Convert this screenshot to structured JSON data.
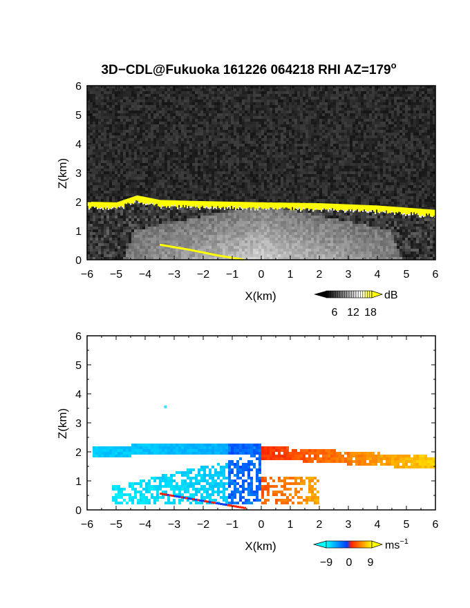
{
  "title": {
    "main": "3D−CDL@Fukuoka 161226 064218 RHI AZ=179",
    "superscript": "o"
  },
  "chart_data": [
    {
      "type": "heatmap",
      "panel": "reflectivity",
      "xlabel": "X(km)",
      "ylabel": "Z(km)",
      "xlim": [
        -6,
        6
      ],
      "ylim": [
        0,
        6
      ],
      "xticks": [
        -6,
        -5,
        -4,
        -3,
        -2,
        -1,
        0,
        1,
        2,
        3,
        4,
        5,
        6
      ],
      "yticks": [
        0,
        1,
        2,
        3,
        4,
        5,
        6
      ],
      "colorbar": {
        "unit": "dB",
        "ticks": [
          6,
          12,
          18
        ],
        "range": [
          0,
          20
        ],
        "colors": [
          "#000000",
          "#ffffff",
          "#ffff00"
        ]
      },
      "features": {
        "cloud_layer_z_km": [
          {
            "x": -6,
            "z": 2.0
          },
          {
            "x": -5,
            "z": 1.98
          },
          {
            "x": -4.3,
            "z": 2.22
          },
          {
            "x": -3.5,
            "z": 2.06
          },
          {
            "x": -2,
            "z": 2.02
          },
          {
            "x": 0,
            "z": 1.98
          },
          {
            "x": 2,
            "z": 1.95
          },
          {
            "x": 4,
            "z": 1.87
          },
          {
            "x": 6,
            "z": 1.72
          }
        ],
        "ground_clutter_line": [
          {
            "x": -3.5,
            "z": 0.52
          },
          {
            "x": -2.5,
            "z": 0.35
          },
          {
            "x": -1.5,
            "z": 0.15
          },
          {
            "x": -0.6,
            "z": 0.0
          }
        ]
      }
    },
    {
      "type": "heatmap",
      "panel": "doppler_velocity",
      "xlabel": "X(km)",
      "ylabel": "Z(km)",
      "xlim": [
        -6,
        6
      ],
      "ylim": [
        0,
        6
      ],
      "xticks": [
        -6,
        -5,
        -4,
        -3,
        -2,
        -1,
        0,
        1,
        2,
        3,
        4,
        5,
        6
      ],
      "yticks": [
        0,
        1,
        2,
        3,
        4,
        5,
        6
      ],
      "colorbar": {
        "unit": "ms",
        "unit_exponent": "−1",
        "ticks": [
          -9,
          0,
          9
        ],
        "tick_labels": [
          "−9",
          "0",
          "9"
        ],
        "range": [
          -12,
          12
        ],
        "colors": [
          "#00ffff",
          "#0040ff",
          "#ff0000",
          "#ffff00"
        ]
      },
      "features": {
        "echo_top_z_km": 2.2,
        "isolated_echo": {
          "x": -3.3,
          "z": 3.55
        }
      }
    }
  ]
}
